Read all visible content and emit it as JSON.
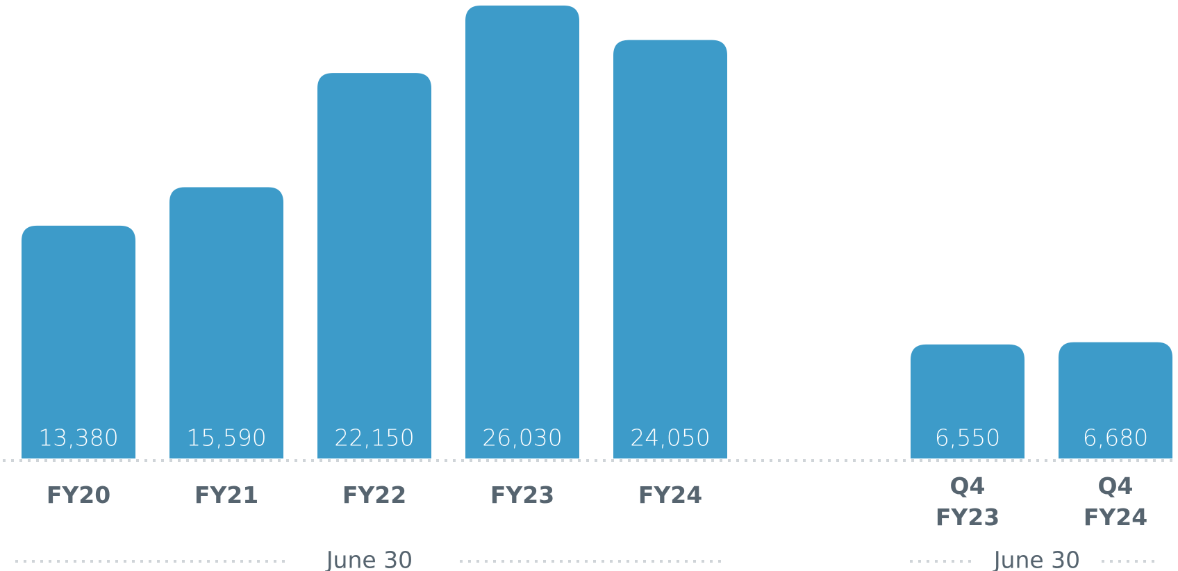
{
  "chart_data": [
    {
      "type": "bar",
      "categories": [
        "FY20",
        "FY21",
        "FY22",
        "FY23",
        "FY24"
      ],
      "values": [
        13380,
        15590,
        22150,
        26030,
        24050
      ],
      "value_labels": [
        "13,380",
        "15,590",
        "22,150",
        "26,030",
        "24,050"
      ],
      "color": "#3d9bc9",
      "xlabel": "June 30"
    },
    {
      "type": "bar",
      "categories": [
        "Q4 FY23",
        "Q4 FY24"
      ],
      "values": [
        6550,
        6680
      ],
      "value_labels": [
        "6,550",
        "6,680"
      ],
      "color": "#3d9bc9",
      "xlabel": "June 30"
    }
  ]
}
